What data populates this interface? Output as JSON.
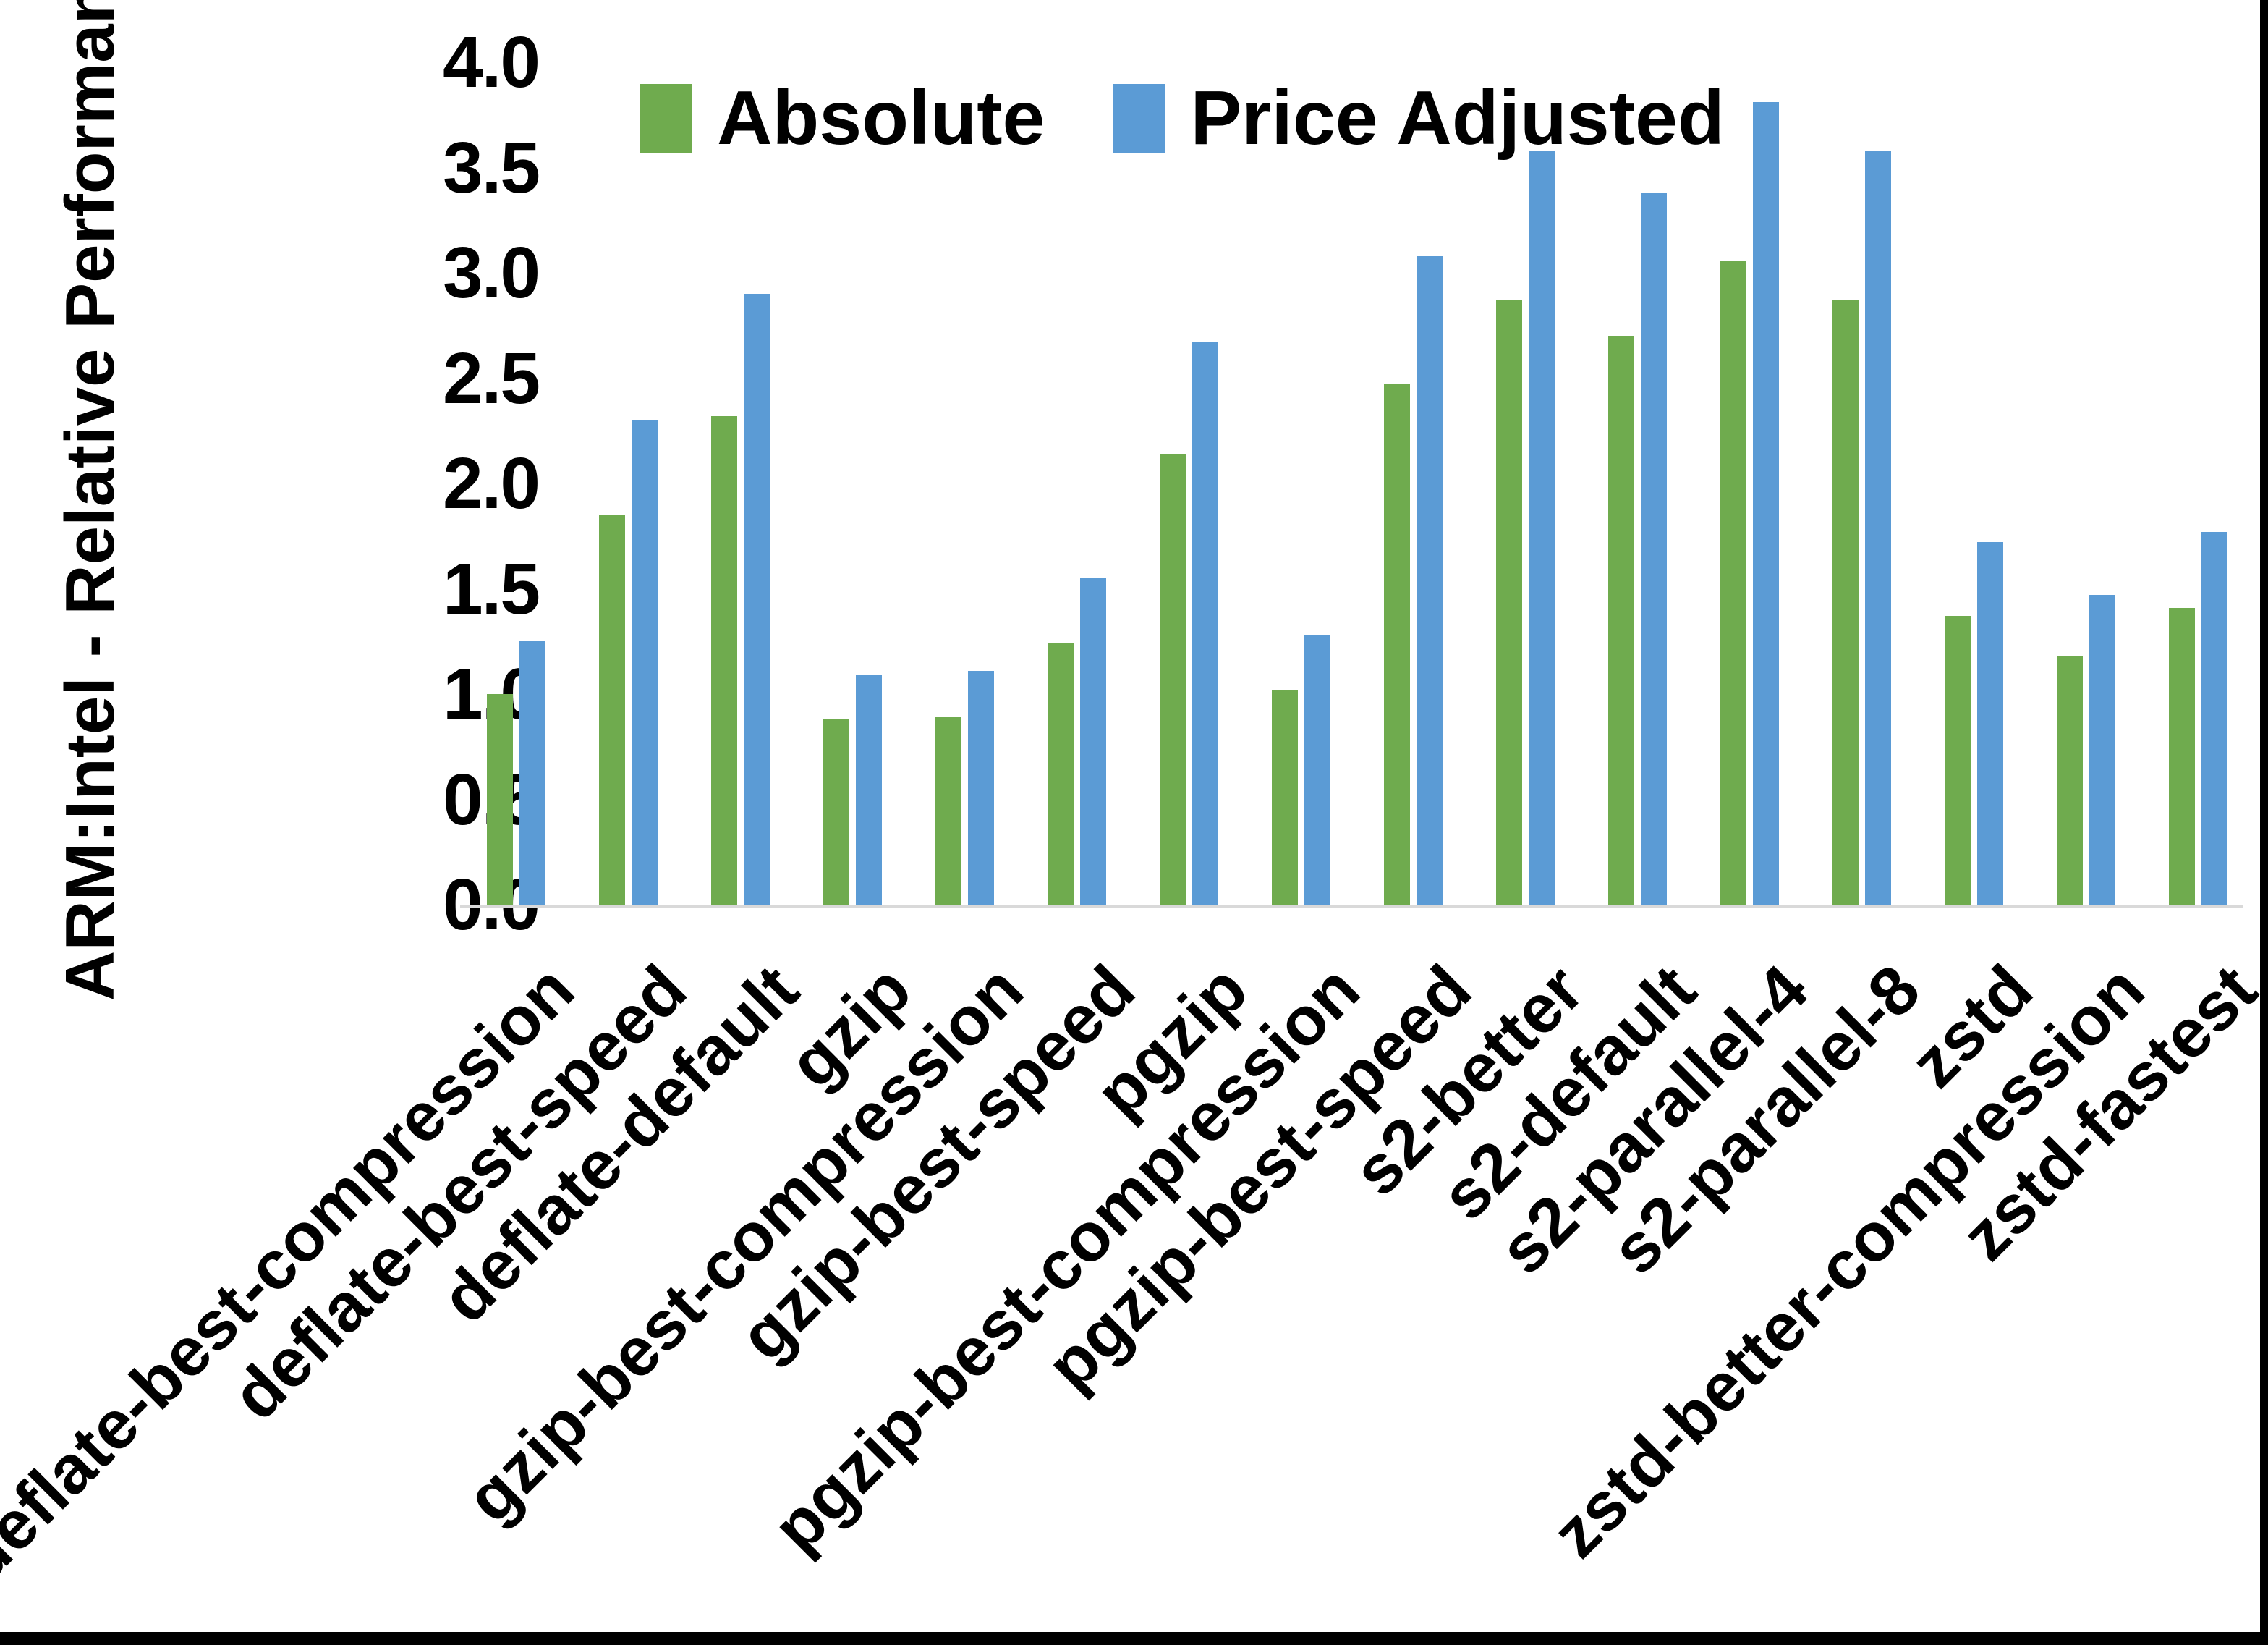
{
  "chart_data": {
    "type": "bar",
    "title": "",
    "ylabel": "ARM:Intel - Relative Performance",
    "xlabel": "",
    "ylim": [
      0.0,
      4.0
    ],
    "ytick_labels": [
      "0.0",
      "0.5",
      "1.0",
      "1.5",
      "2.0",
      "2.5",
      "3.0",
      "3.5",
      "4.0"
    ],
    "grid": false,
    "legend_position": "top-center",
    "categories": [
      "deflate-best-compression",
      "deflate-best-speed",
      "deflate-default",
      "gzip",
      "gzip-best-compression",
      "gzip-best-speed",
      "pgzip",
      "pgzip-best-compression",
      "pgzip-best-speed",
      "s2-better",
      "s2-default",
      "s2-parallel-4",
      "s2-parallel-8",
      "zstd",
      "zstd-better-compression",
      "zstd-fastest"
    ],
    "series": [
      {
        "name": "Absolute",
        "color": "#6fab4e",
        "values": [
          1.0,
          1.85,
          2.32,
          0.88,
          0.89,
          1.24,
          2.14,
          1.02,
          2.47,
          2.87,
          2.7,
          3.06,
          2.87,
          1.37,
          1.18,
          1.41
        ]
      },
      {
        "name": "Price Adjusted",
        "color": "#5b9bd5",
        "values": [
          1.25,
          2.3,
          2.9,
          1.09,
          1.11,
          1.55,
          2.67,
          1.28,
          3.08,
          3.58,
          3.38,
          3.81,
          3.58,
          1.72,
          1.47,
          1.77
        ]
      }
    ],
    "axis_line_color": "#d9d9d9",
    "text_color": "#000000"
  },
  "legend": {
    "absolute_label": "Absolute",
    "price_adjusted_label": "Price Adjusted"
  },
  "frame": {
    "right_bar_color": "#000000",
    "bottom_bar_color": "#000000"
  }
}
